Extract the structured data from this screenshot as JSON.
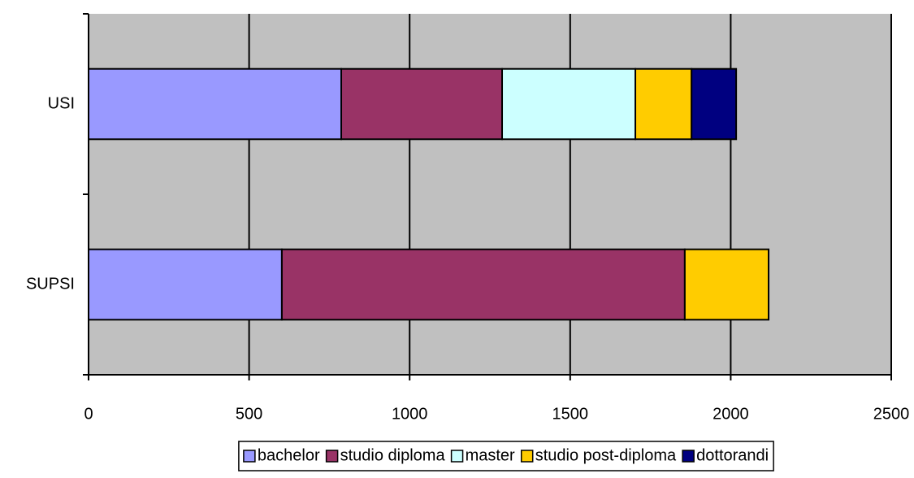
{
  "chart_data": {
    "type": "stacked-barh",
    "categories": [
      "USI",
      "SUPSI"
    ],
    "series": [
      {
        "name": "bachelor",
        "color": "#9999ff",
        "values": [
          787,
          602
        ]
      },
      {
        "name": "studio diploma",
        "color": "#993366",
        "values": [
          501,
          1255
        ]
      },
      {
        "name": "master",
        "color": "#ccffff",
        "values": [
          415,
          0
        ]
      },
      {
        "name": "studio post-diploma",
        "color": "#ffcc00",
        "values": [
          175,
          261
        ]
      },
      {
        "name": "dottorandi",
        "color": "#000080",
        "values": [
          139,
          0
        ]
      }
    ],
    "xlim": [
      0,
      2500
    ],
    "xticks": [
      0,
      500,
      1000,
      1500,
      2000,
      2500
    ],
    "grid": true,
    "legend": "bottom",
    "plot_background": "#c0c0c0"
  }
}
